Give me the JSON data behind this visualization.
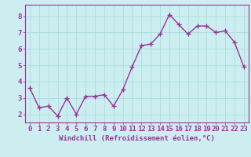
{
  "x": [
    0,
    1,
    2,
    3,
    4,
    5,
    6,
    7,
    8,
    9,
    10,
    11,
    12,
    13,
    14,
    15,
    16,
    17,
    18,
    19,
    20,
    21,
    22,
    23
  ],
  "y": [
    3.6,
    2.4,
    2.5,
    1.9,
    3.0,
    2.0,
    3.1,
    3.1,
    3.2,
    2.5,
    3.5,
    4.9,
    6.2,
    6.3,
    6.9,
    8.1,
    7.5,
    6.9,
    7.4,
    7.4,
    7.0,
    7.1,
    6.4,
    4.9
  ],
  "line_color": "#993399",
  "marker": "+",
  "marker_size": 4,
  "linewidth": 1.0,
  "bg_color": "#cceef0",
  "grid_color": "#aadddd",
  "xlabel": "Windchill (Refroidissement éolien,°C)",
  "xlabel_color": "#993399",
  "tick_color": "#993399",
  "xtick_labels": [
    "0",
    "1",
    "2",
    "3",
    "4",
    "5",
    "6",
    "7",
    "8",
    "9",
    "10",
    "11",
    "12",
    "13",
    "14",
    "15",
    "16",
    "17",
    "18",
    "19",
    "20",
    "21",
    "22",
    "23"
  ],
  "ytick_labels": [
    "2",
    "3",
    "4",
    "5",
    "6",
    "7",
    "8"
  ],
  "ytick_vals": [
    2,
    3,
    4,
    5,
    6,
    7,
    8
  ],
  "ylim": [
    1.5,
    8.7
  ],
  "xlim": [
    -0.5,
    23.5
  ],
  "spine_color": "#993399",
  "font_size_xlabel": 6.5,
  "font_size_ticks": 6.5
}
